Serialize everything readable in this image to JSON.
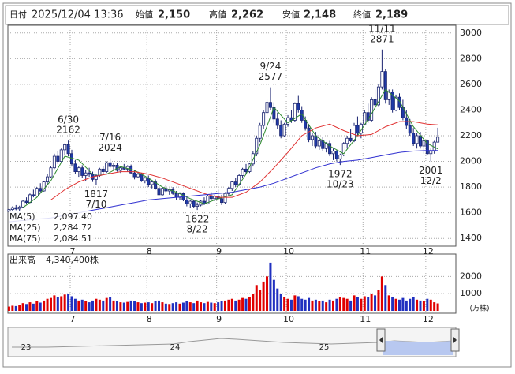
{
  "header": {
    "fields": [
      {
        "label": "日付",
        "value": "2025/12/04 13:36"
      },
      {
        "label": "始値",
        "value": "2,150"
      },
      {
        "label": "高値",
        "value": "2,262"
      },
      {
        "label": "安値",
        "value": "2,148"
      },
      {
        "label": "終値",
        "value": "2,189"
      }
    ]
  },
  "chart_data": {
    "type": "candlestick",
    "up_color": "#ffffff",
    "down_color": "#1f3aa8",
    "edge_color": "#1a2470",
    "ylim": [
      1340,
      3060
    ],
    "yticks": [
      1400,
      1600,
      1800,
      2000,
      2200,
      2400,
      2600,
      2800,
      3000
    ],
    "grid": true,
    "xticks": [
      {
        "value": 18,
        "label": "7"
      },
      {
        "value": 40,
        "label": "8"
      },
      {
        "value": 60,
        "label": "9"
      },
      {
        "value": 80,
        "label": "10"
      },
      {
        "value": 102,
        "label": "11"
      },
      {
        "value": 120,
        "label": "12"
      }
    ],
    "candles": [
      [
        1610,
        1640,
        1600,
        1625
      ],
      [
        1625,
        1650,
        1615,
        1640
      ],
      [
        1640,
        1660,
        1620,
        1630
      ],
      [
        1630,
        1655,
        1610,
        1645
      ],
      [
        1645,
        1700,
        1640,
        1690
      ],
      [
        1690,
        1720,
        1670,
        1680
      ],
      [
        1680,
        1750,
        1675,
        1740
      ],
      [
        1740,
        1780,
        1720,
        1730
      ],
      [
        1730,
        1800,
        1725,
        1790
      ],
      [
        1790,
        1830,
        1760,
        1770
      ],
      [
        1770,
        1850,
        1765,
        1840
      ],
      [
        1840,
        1900,
        1820,
        1880
      ],
      [
        1880,
        1960,
        1870,
        1950
      ],
      [
        1950,
        2060,
        1940,
        2040
      ],
      [
        2040,
        2080,
        1980,
        2000
      ],
      [
        2000,
        2100,
        1990,
        2090
      ],
      [
        2090,
        2140,
        2050,
        2130
      ],
      [
        2130,
        2162,
        2040,
        2060
      ],
      [
        2060,
        2090,
        1960,
        1980
      ],
      [
        1980,
        2010,
        1900,
        1920
      ],
      [
        1920,
        1960,
        1880,
        1950
      ],
      [
        1950,
        1970,
        1870,
        1890
      ],
      [
        1890,
        1930,
        1850,
        1910
      ],
      [
        1910,
        1950,
        1880,
        1900
      ],
      [
        1900,
        1920,
        1840,
        1860
      ],
      [
        1860,
        1900,
        1817,
        1890
      ],
      [
        1890,
        1950,
        1880,
        1940
      ],
      [
        1940,
        1960,
        1900,
        1920
      ],
      [
        1920,
        2000,
        1910,
        1990
      ],
      [
        1990,
        2024,
        1950,
        1960
      ],
      [
        1960,
        1990,
        1930,
        1970
      ],
      [
        1970,
        1985,
        1920,
        1930
      ],
      [
        1930,
        1960,
        1910,
        1950
      ],
      [
        1950,
        1980,
        1930,
        1940
      ],
      [
        1940,
        1970,
        1920,
        1960
      ],
      [
        1960,
        1975,
        1900,
        1910
      ],
      [
        1910,
        1930,
        1860,
        1880
      ],
      [
        1880,
        1920,
        1870,
        1900
      ],
      [
        1900,
        1910,
        1840,
        1850
      ],
      [
        1850,
        1880,
        1830,
        1870
      ],
      [
        1870,
        1890,
        1800,
        1820
      ],
      [
        1820,
        1850,
        1790,
        1840
      ],
      [
        1840,
        1860,
        1780,
        1790
      ],
      [
        1790,
        1810,
        1720,
        1740
      ],
      [
        1740,
        1800,
        1730,
        1790
      ],
      [
        1790,
        1820,
        1760,
        1770
      ],
      [
        1770,
        1790,
        1740,
        1780
      ],
      [
        1780,
        1800,
        1740,
        1750
      ],
      [
        1750,
        1770,
        1700,
        1720
      ],
      [
        1720,
        1760,
        1700,
        1750
      ],
      [
        1750,
        1760,
        1690,
        1700
      ],
      [
        1700,
        1720,
        1650,
        1670
      ],
      [
        1670,
        1700,
        1640,
        1690
      ],
      [
        1690,
        1700,
        1640,
        1650
      ],
      [
        1650,
        1680,
        1622,
        1660
      ],
      [
        1660,
        1700,
        1650,
        1690
      ],
      [
        1690,
        1720,
        1660,
        1670
      ],
      [
        1670,
        1740,
        1665,
        1730
      ],
      [
        1730,
        1760,
        1700,
        1710
      ],
      [
        1710,
        1740,
        1690,
        1730
      ],
      [
        1730,
        1780,
        1700,
        1710
      ],
      [
        1710,
        1740,
        1660,
        1680
      ],
      [
        1680,
        1760,
        1670,
        1750
      ],
      [
        1750,
        1800,
        1730,
        1790
      ],
      [
        1790,
        1850,
        1770,
        1840
      ],
      [
        1840,
        1870,
        1800,
        1820
      ],
      [
        1820,
        1900,
        1810,
        1890
      ],
      [
        1890,
        1950,
        1870,
        1940
      ],
      [
        1940,
        1980,
        1900,
        1920
      ],
      [
        1920,
        1990,
        1910,
        1980
      ],
      [
        1980,
        2080,
        1960,
        2060
      ],
      [
        2060,
        2200,
        2040,
        2180
      ],
      [
        2180,
        2300,
        2150,
        2280
      ],
      [
        2280,
        2400,
        2250,
        2380
      ],
      [
        2380,
        2480,
        2350,
        2460
      ],
      [
        2460,
        2577,
        2400,
        2420
      ],
      [
        2420,
        2460,
        2300,
        2330
      ],
      [
        2330,
        2380,
        2250,
        2280
      ],
      [
        2280,
        2320,
        2180,
        2200
      ],
      [
        2200,
        2300,
        2190,
        2290
      ],
      [
        2290,
        2360,
        2270,
        2340
      ],
      [
        2340,
        2400,
        2300,
        2320
      ],
      [
        2320,
        2460,
        2310,
        2450
      ],
      [
        2450,
        2510,
        2380,
        2400
      ],
      [
        2400,
        2430,
        2300,
        2320
      ],
      [
        2320,
        2350,
        2240,
        2260
      ],
      [
        2260,
        2290,
        2150,
        2170
      ],
      [
        2170,
        2220,
        2120,
        2200
      ],
      [
        2200,
        2230,
        2100,
        2120
      ],
      [
        2120,
        2180,
        2090,
        2160
      ],
      [
        2160,
        2190,
        2080,
        2100
      ],
      [
        2100,
        2150,
        2070,
        2140
      ],
      [
        2140,
        2160,
        2040,
        2060
      ],
      [
        2060,
        2100,
        2010,
        2080
      ],
      [
        2080,
        2090,
        2000,
        2020
      ],
      [
        2020,
        2060,
        1972,
        2050
      ],
      [
        2050,
        2150,
        2040,
        2140
      ],
      [
        2140,
        2200,
        2100,
        2180
      ],
      [
        2180,
        2250,
        2150,
        2160
      ],
      [
        2160,
        2300,
        2150,
        2280
      ],
      [
        2280,
        2350,
        2200,
        2220
      ],
      [
        2220,
        2300,
        2180,
        2290
      ],
      [
        2290,
        2400,
        2280,
        2380
      ],
      [
        2380,
        2450,
        2300,
        2320
      ],
      [
        2320,
        2500,
        2310,
        2480
      ],
      [
        2480,
        2560,
        2420,
        2440
      ],
      [
        2440,
        2600,
        2430,
        2580
      ],
      [
        2580,
        2871,
        2560,
        2700
      ],
      [
        2700,
        2720,
        2450,
        2480
      ],
      [
        2480,
        2560,
        2440,
        2540
      ],
      [
        2540,
        2560,
        2380,
        2400
      ],
      [
        2400,
        2520,
        2390,
        2500
      ],
      [
        2500,
        2530,
        2400,
        2420
      ],
      [
        2420,
        2480,
        2320,
        2340
      ],
      [
        2340,
        2400,
        2250,
        2280
      ],
      [
        2280,
        2330,
        2200,
        2220
      ],
      [
        2220,
        2260,
        2120,
        2140
      ],
      [
        2140,
        2220,
        2100,
        2200
      ],
      [
        2200,
        2230,
        2100,
        2120
      ],
      [
        2120,
        2180,
        2060,
        2160
      ],
      [
        2160,
        2170,
        2050,
        2060
      ],
      [
        2060,
        2100,
        2001,
        2080
      ],
      [
        2080,
        2160,
        2060,
        2150
      ],
      [
        2150,
        2262,
        2148,
        2189
      ]
    ],
    "annotations": [
      {
        "date": "6/30",
        "value": 2162
      },
      {
        "date": "7/16",
        "value": 2024
      },
      {
        "date": "7/10",
        "value": 1817
      },
      {
        "date": "9/24",
        "value": 2577
      },
      {
        "date": "11/11",
        "value": 2871
      },
      {
        "date": "8/22",
        "value": 1622
      },
      {
        "date": "10/23",
        "value": 1972
      },
      {
        "date": "12/2",
        "value": 2001
      }
    ],
    "series": [
      {
        "name": "MA(5)",
        "color": "#2e8b2e",
        "last_label": "2,097.40",
        "x": [
          4,
          8,
          12,
          16,
          20,
          24,
          28,
          32,
          36,
          40,
          44,
          48,
          52,
          56,
          60,
          64,
          68,
          72,
          76,
          80,
          84,
          88,
          92,
          96,
          100,
          104,
          108,
          112,
          116,
          120,
          123
        ],
        "values": [
          1640,
          1720,
          1850,
          2040,
          2010,
          1900,
          1900,
          1960,
          1930,
          1870,
          1800,
          1760,
          1710,
          1670,
          1710,
          1740,
          1900,
          2130,
          2420,
          2300,
          2370,
          2200,
          2120,
          2060,
          2200,
          2370,
          2560,
          2470,
          2270,
          2140,
          2097.4
        ]
      },
      {
        "name": "MA(25)",
        "color": "#e03030",
        "last_label": "2,284.72",
        "x": [
          12,
          16,
          20,
          24,
          28,
          32,
          36,
          40,
          44,
          48,
          52,
          56,
          60,
          64,
          68,
          72,
          76,
          80,
          84,
          88,
          92,
          96,
          100,
          104,
          108,
          112,
          116,
          120,
          123
        ],
        "values": [
          1700,
          1780,
          1840,
          1880,
          1900,
          1920,
          1920,
          1900,
          1870,
          1830,
          1790,
          1750,
          1720,
          1720,
          1760,
          1840,
          1950,
          2070,
          2200,
          2260,
          2290,
          2240,
          2200,
          2210,
          2270,
          2310,
          2310,
          2290,
          2284.72
        ]
      },
      {
        "name": "MA(75)",
        "color": "#3030d0",
        "last_label": "2,084.51",
        "x": [
          0,
          4,
          8,
          12,
          16,
          20,
          24,
          28,
          32,
          36,
          40,
          44,
          48,
          52,
          56,
          60,
          64,
          68,
          72,
          76,
          80,
          84,
          88,
          92,
          96,
          100,
          104,
          108,
          112,
          116,
          120,
          123
        ],
        "values": [
          1530,
          1540,
          1550,
          1560,
          1580,
          1600,
          1620,
          1640,
          1660,
          1680,
          1700,
          1710,
          1720,
          1730,
          1740,
          1750,
          1760,
          1780,
          1800,
          1830,
          1870,
          1910,
          1950,
          1980,
          2000,
          2010,
          2030,
          2050,
          2070,
          2080,
          2085,
          2084.51
        ]
      }
    ],
    "volume": {
      "title": "出来高",
      "label": "4,340,400株",
      "unit": "(万株)",
      "up_color": "#e00000",
      "down_color": "#2030c0",
      "ylim": [
        0,
        3300
      ],
      "yticks": [
        1000,
        2000
      ],
      "values": [
        250,
        300,
        280,
        320,
        450,
        400,
        500,
        420,
        550,
        480,
        600,
        700,
        750,
        900,
        800,
        850,
        950,
        1000,
        850,
        700,
        600,
        650,
        550,
        500,
        600,
        700,
        650,
        600,
        750,
        800,
        600,
        550,
        500,
        480,
        520,
        600,
        550,
        500,
        450,
        480,
        500,
        450,
        550,
        600,
        500,
        420,
        400,
        450,
        500,
        420,
        480,
        550,
        500,
        450,
        600,
        500,
        450,
        520,
        480,
        450,
        500,
        550,
        600,
        650,
        700,
        600,
        650,
        750,
        700,
        800,
        1000,
        1500,
        1200,
        1700,
        2000,
        2800,
        1800,
        1300,
        1000,
        800,
        700,
        650,
        900,
        850,
        700,
        650,
        750,
        600,
        650,
        550,
        600,
        500,
        650,
        600,
        700,
        800,
        750,
        700,
        600,
        900,
        800,
        700,
        850,
        800,
        1000,
        900,
        1200,
        2000,
        1500,
        900,
        800,
        700,
        650,
        750,
        600,
        700,
        800,
        650,
        600,
        550,
        700,
        650,
        500,
        434.04
      ]
    },
    "navigator": {
      "labels": [
        "23",
        "24",
        "25"
      ]
    }
  }
}
